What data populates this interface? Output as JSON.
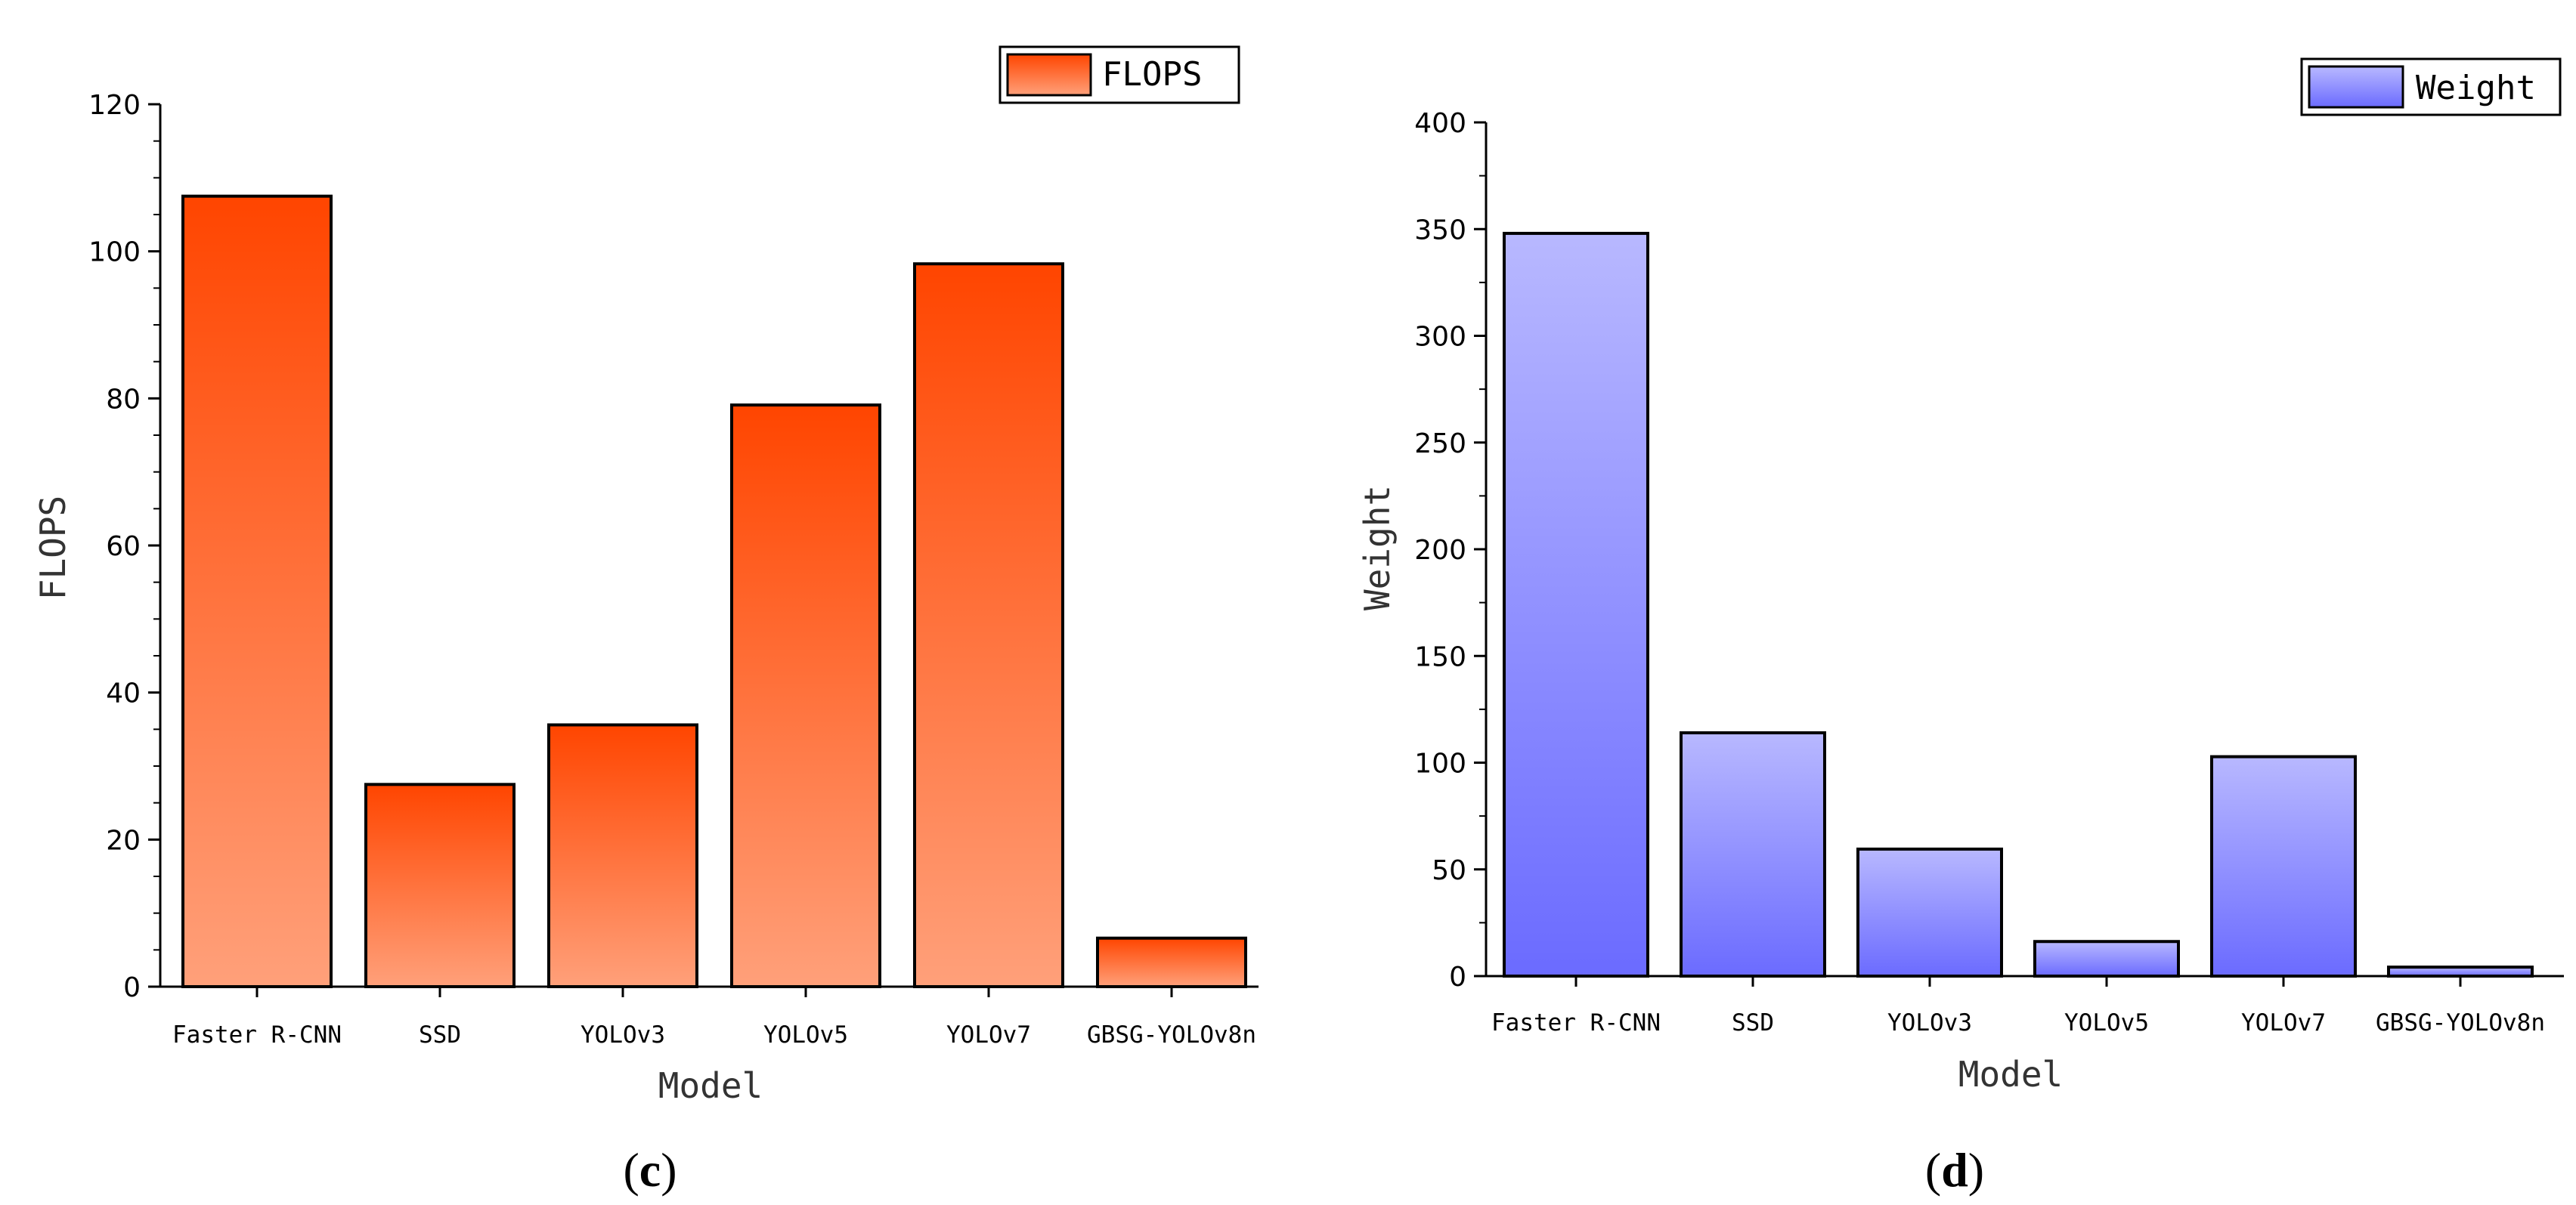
{
  "chart_data": [
    {
      "type": "bar",
      "panel": "(c)",
      "panel_letter": "c",
      "categories": [
        "Faster R-CNN",
        "SSD",
        "YOLOv3",
        "YOLOv5",
        "YOLOv7",
        "GBSG-YOLOv8n"
      ],
      "series": [
        {
          "name": "FLOPS",
          "values": [
            107.5,
            27.5,
            35.6,
            79.1,
            98.3,
            6.6
          ]
        }
      ],
      "xlabel": "Model",
      "ylabel": "FLOPS",
      "ylim": [
        0,
        120
      ],
      "yticks": [
        0,
        20,
        40,
        60,
        80,
        100,
        120
      ],
      "legend": {
        "placement": "top-right",
        "label": "FLOPS"
      },
      "grid": false,
      "colors": {
        "bar_top": "#ff4500",
        "bar_bottom": "#ffa07a",
        "outline": "#000000"
      }
    },
    {
      "type": "bar",
      "panel": "(d)",
      "panel_letter": "d",
      "categories": [
        "Faster R-CNN",
        "SSD",
        "YOLOv3",
        "YOLOv5",
        "YOLOv7",
        "GBSG-YOLOv8n"
      ],
      "series": [
        {
          "name": "Weight",
          "values": [
            348,
            114,
            59.5,
            16.2,
            102.8,
            4.2
          ]
        }
      ],
      "xlabel": "Model",
      "ylabel": "Weight",
      "ylim": [
        0,
        400
      ],
      "yticks": [
        0,
        50,
        100,
        150,
        200,
        250,
        300,
        350,
        400
      ],
      "legend": {
        "placement": "top-right",
        "label": "Weight"
      },
      "grid": false,
      "colors": {
        "bar_top": "#b8b8ff",
        "bar_bottom": "#6b6bff",
        "outline": "#000000"
      }
    }
  ]
}
